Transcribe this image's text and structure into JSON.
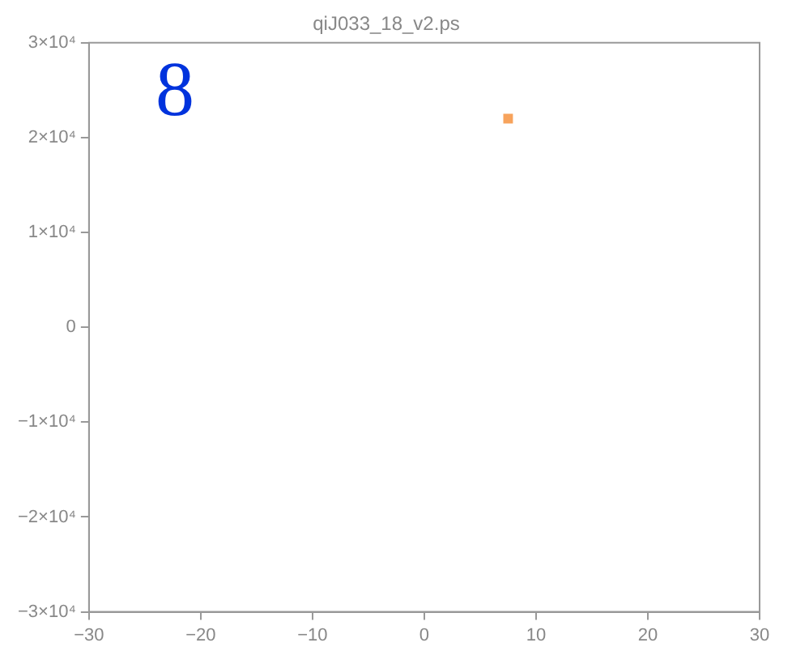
{
  "chart_data": {
    "type": "scatter",
    "title": "qiJ033_18_v2.ps",
    "annotations": [
      "8"
    ],
    "x": [
      7.5
    ],
    "series": [
      {
        "color": "#f7a35c",
        "values": [
          22000
        ]
      }
    ],
    "xlim": [
      -30,
      30
    ],
    "xticks": [
      {
        "value": -30,
        "label": "−30"
      },
      {
        "value": -20,
        "label": "−20"
      },
      {
        "value": -10,
        "label": "−10"
      },
      0,
      10,
      20,
      30
    ],
    "ylim": [
      -30000,
      30000
    ],
    "yticks": [
      {
        "value": -30000,
        "label": "−3×10⁴"
      },
      {
        "value": -20000,
        "label": "−2×10⁴"
      },
      {
        "value": -10000,
        "label": "−1×10⁴"
      },
      0,
      {
        "value": 10000,
        "label": "1×10⁴"
      },
      {
        "value": 20000,
        "label": "2×10⁴"
      },
      {
        "value": 30000,
        "label": "3×10⁴"
      }
    ],
    "grid": false,
    "legend": false,
    "marker": "square"
  }
}
